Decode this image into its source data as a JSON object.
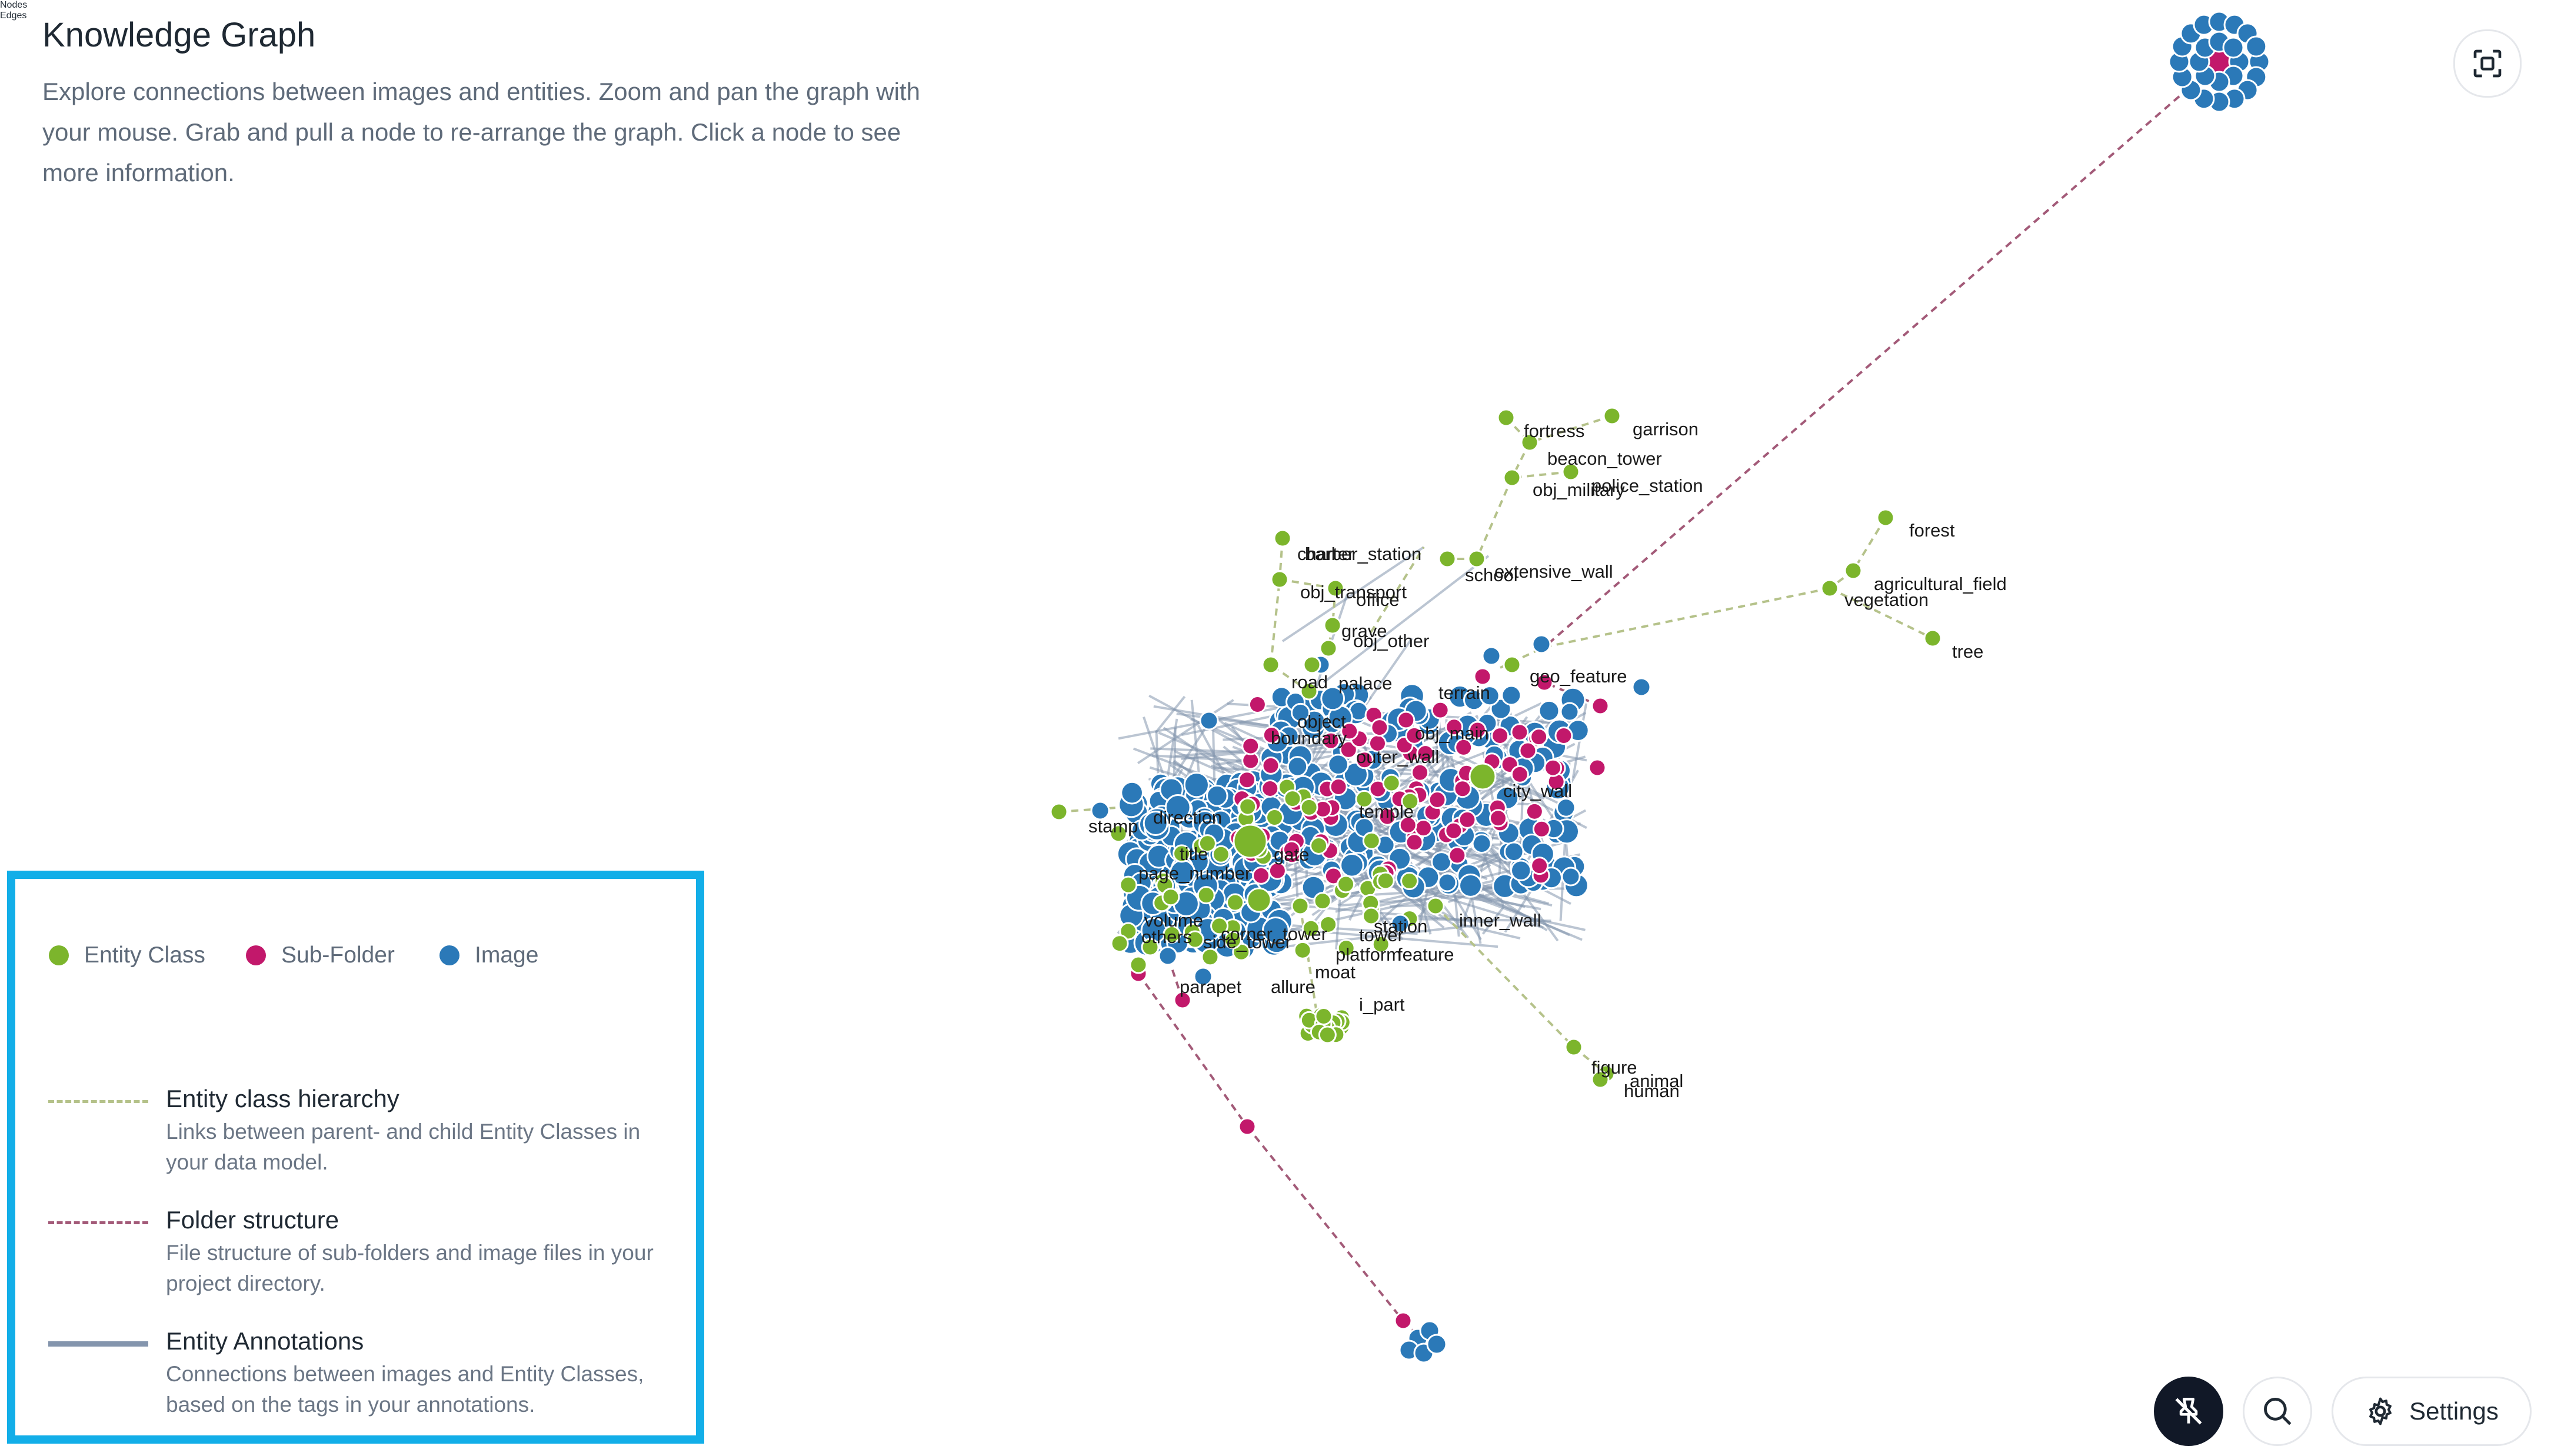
{
  "header": {
    "title": "Knowledge Graph",
    "description": "Explore connections between images and entities. Zoom and pan the graph with your mouse. Grab and pull a node to re-arrange the graph. Click a node to see more information."
  },
  "legend": {
    "nodes_title": "Nodes",
    "node_types": [
      {
        "label": "Entity Class",
        "color": "#7cb52c"
      },
      {
        "label": "Sub-Folder",
        "color": "#c2186b"
      },
      {
        "label": "Image",
        "color": "#2b79b8"
      }
    ],
    "edges_title": "Edges",
    "edge_types": [
      {
        "label": "Entity class hierarchy",
        "description": "Links between parent- and child Entity Classes in your data model.",
        "color": "#b5c28a",
        "style": "dashed"
      },
      {
        "label": "Folder structure",
        "description": "File structure of sub-folders and image files in your project directory.",
        "color": "#a35a78",
        "style": "dashed"
      },
      {
        "label": "Entity Annotations",
        "description": "Connections between images and Entity Classes, based on the tags in your annotations.",
        "color": "#8495ad",
        "style": "solid"
      }
    ]
  },
  "graph": {
    "node_labels": [
      "fortress",
      "garrison",
      "beacon_tower",
      "obj_military",
      "police_station",
      "forest",
      "agricultural_field",
      "vegetation",
      "tree",
      "barber_station",
      "charter",
      "extensive_wall",
      "school",
      "obj_transport",
      "office",
      "grave",
      "obj_other",
      "road",
      "palace",
      "geo_feature",
      "terrain",
      "object",
      "boundary",
      "obj_main",
      "outer_wall",
      "city_wall",
      "temple",
      "stamp",
      "direction",
      "title",
      "gate",
      "page_number",
      "volume",
      "others",
      "corner_tower",
      "station",
      "side_tower",
      "platform",
      "feature",
      "tower",
      "moat",
      "parapet",
      "allure",
      "i_part",
      "inner_wall",
      "figure",
      "animal",
      "human"
    ]
  },
  "toolbar": {
    "unpin_icon": "pin-off-icon",
    "search_icon": "search-icon",
    "settings_icon": "gear-icon",
    "settings_label": "Settings",
    "fit_icon": "fit-screen-icon"
  }
}
